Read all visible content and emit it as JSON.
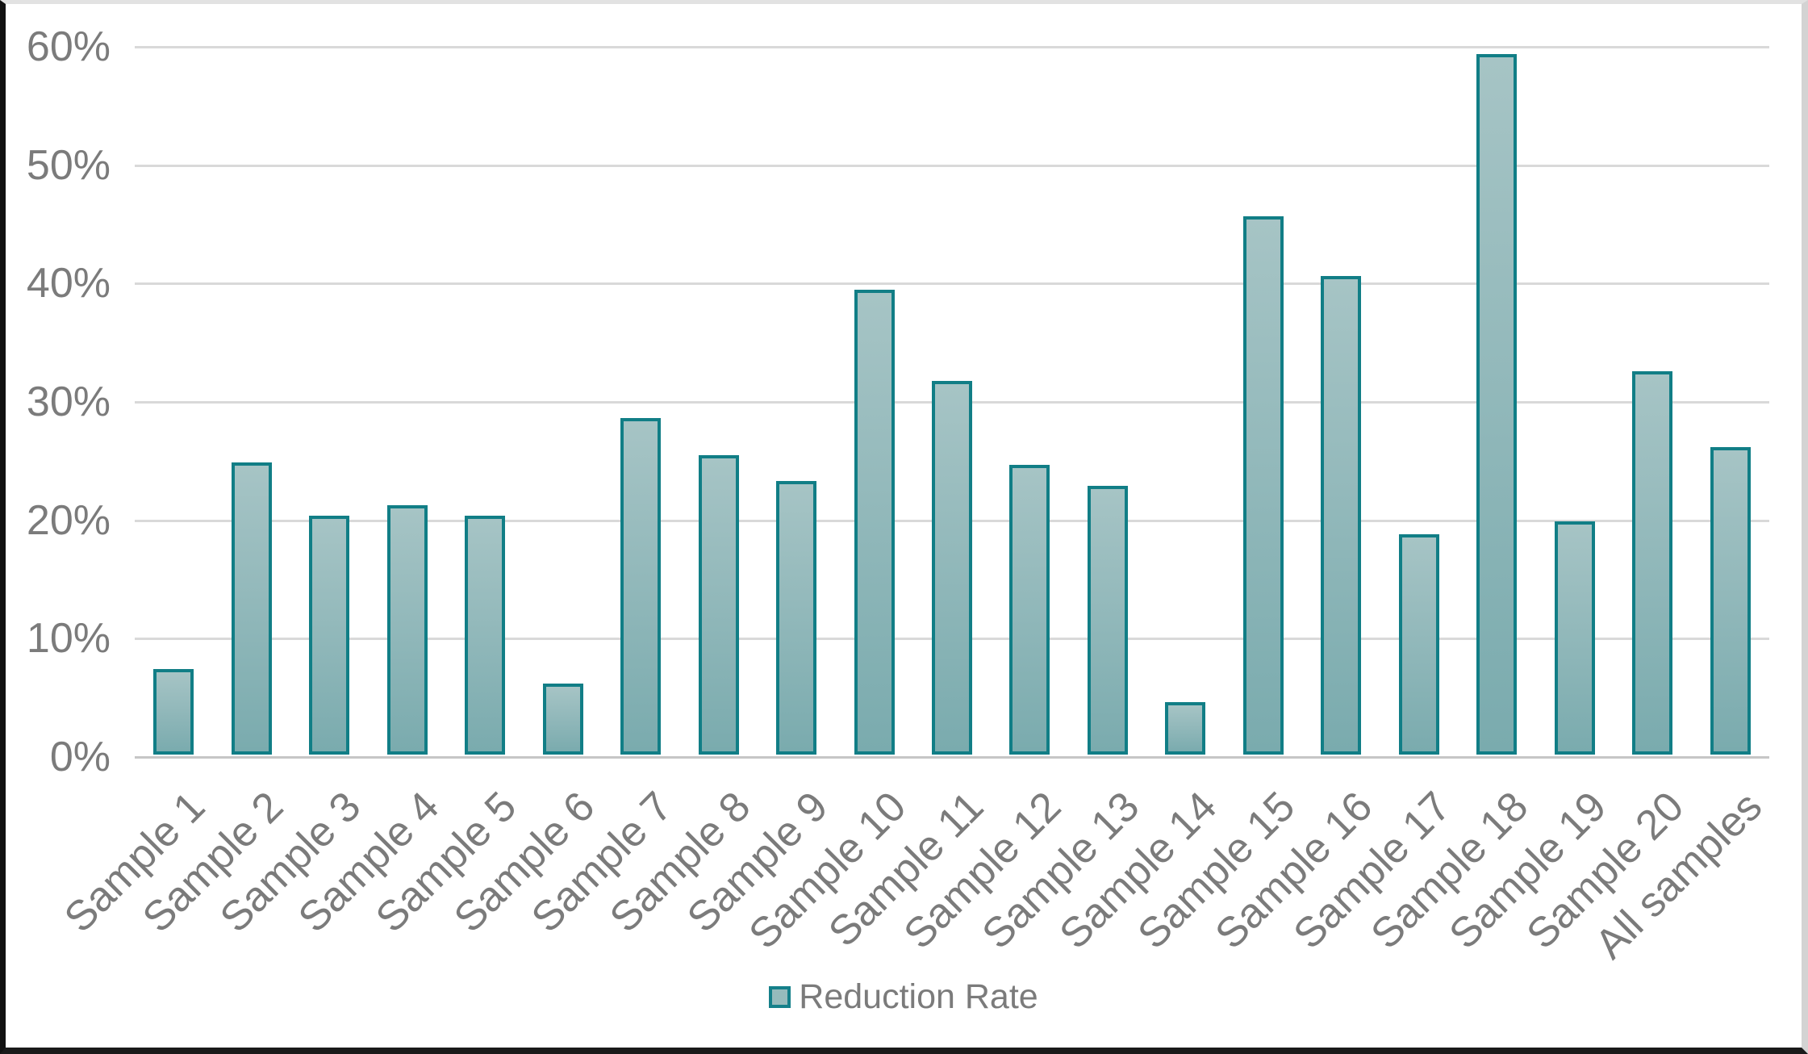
{
  "chart_data": {
    "type": "bar",
    "title": "",
    "xlabel": "",
    "ylabel": "",
    "categories": [
      "Sample 1",
      "Sample 2",
      "Sample 3",
      "Sample 4",
      "Sample 5",
      "Sample 6",
      "Sample 7",
      "Sample 8",
      "Sample 9",
      "Sample 10",
      "Sample 11",
      "Sample 12",
      "Sample 13",
      "Sample 14",
      "Sample 15",
      "Sample 16",
      "Sample 17",
      "Sample 18",
      "Sample 19",
      "Sample 20",
      "All samples"
    ],
    "series": [
      {
        "name": "Reduction Rate",
        "unit": "%",
        "values": [
          7.2,
          24.7,
          20.2,
          21.1,
          20.2,
          6.0,
          28.4,
          25.3,
          23.1,
          39.3,
          31.6,
          24.5,
          22.7,
          4.4,
          45.5,
          40.4,
          18.6,
          59.2,
          19.7,
          32.4,
          26.0
        ]
      }
    ],
    "ylim": [
      0,
      60
    ],
    "y_ticks": [
      {
        "label": "60%",
        "value": 60
      },
      {
        "label": "50%",
        "value": 50
      },
      {
        "label": "40%",
        "value": 40
      },
      {
        "label": "30%",
        "value": 30
      },
      {
        "label": "20%",
        "value": 20
      },
      {
        "label": "10%",
        "value": 10
      },
      {
        "label": "0%",
        "value": 0
      }
    ],
    "grid": true,
    "legend_position": "bottom"
  },
  "legend": {
    "label": "Reduction Rate"
  },
  "colors": {
    "bar_fill_top": "#a6c4c5",
    "bar_fill_bottom": "#7aabae",
    "bar_border": "#117e86",
    "gridline": "#d9d9d9",
    "axis_line": "#c6c6c6",
    "text": "#7b7b7b",
    "background": "#ffffff"
  }
}
